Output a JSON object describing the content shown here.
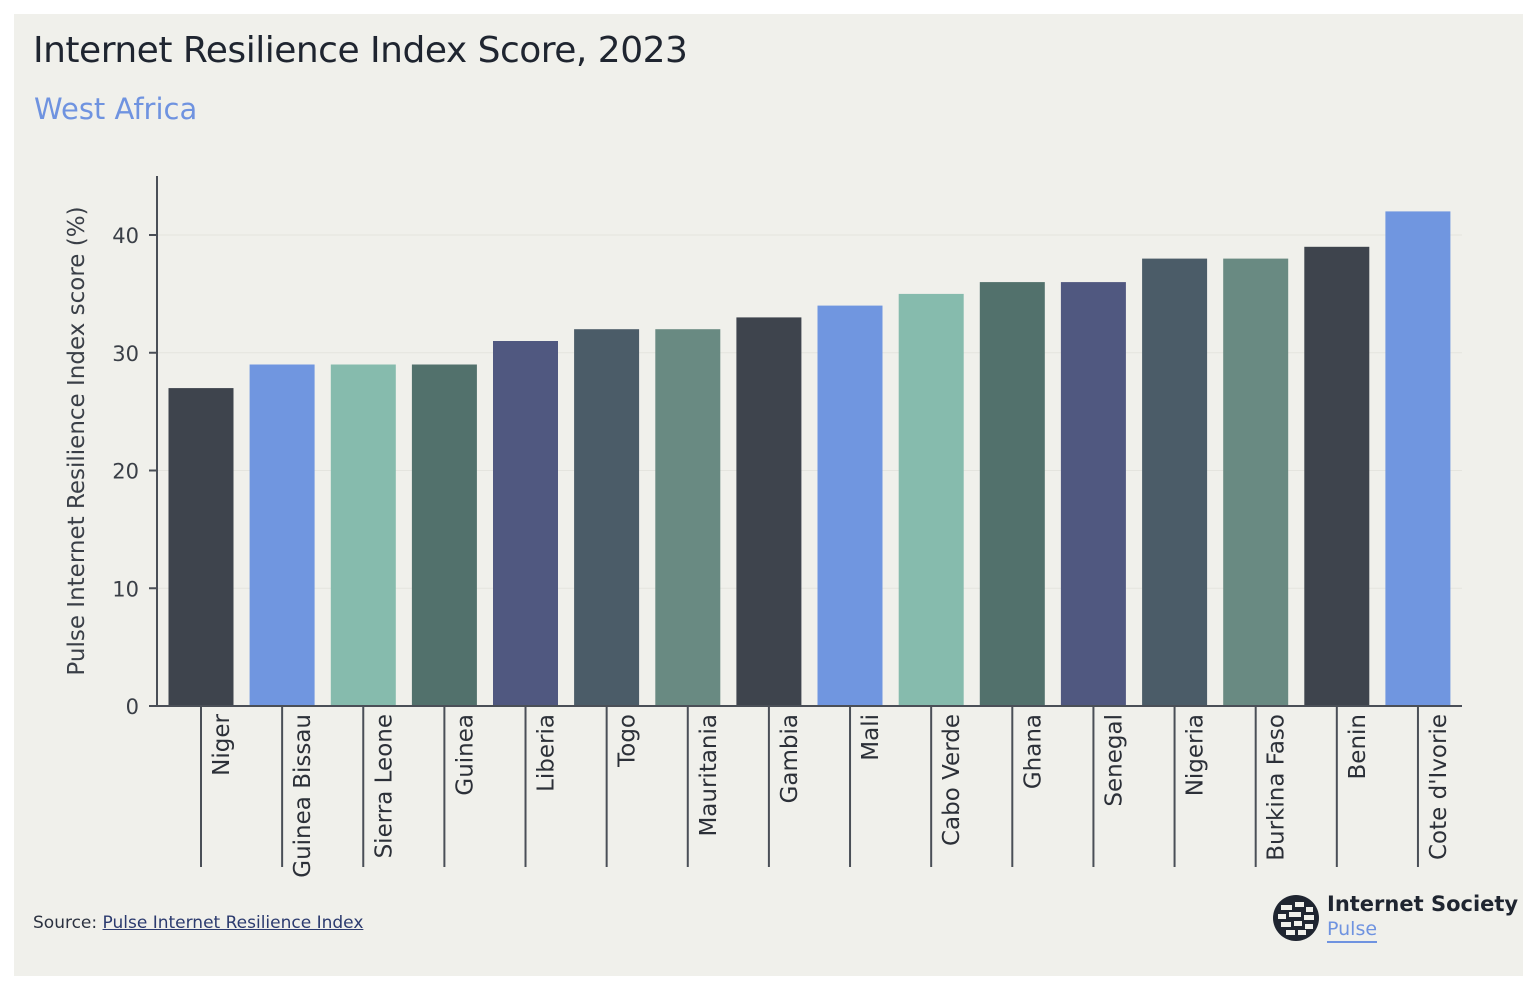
{
  "header": {
    "title": "Internet Resilience Index Score, 2023",
    "subtitle": "West Africa"
  },
  "footer": {
    "source_label": "Source:",
    "source_link": "Pulse Internet Resilience Index"
  },
  "logo": {
    "name": "Internet Society",
    "sub": "Pulse",
    "icon": "globe-logo-icon"
  },
  "chart_data": {
    "type": "bar",
    "title": "Internet Resilience Index Score, 2023",
    "subtitle": "West Africa",
    "xlabel": "",
    "ylabel": "Pulse Internet Resilience Index score (%)",
    "ylim": [
      0,
      45
    ],
    "yticks": [
      0,
      10,
      20,
      30,
      40
    ],
    "grid": true,
    "legend": "none",
    "categories": [
      "Niger",
      "Guinea Bissau",
      "Sierra Leone",
      "Guinea",
      "Liberia",
      "Togo",
      "Mauritania",
      "Gambia",
      "Mali",
      "Cabo Verde",
      "Ghana",
      "Senegal",
      "Nigeria",
      "Burkina Faso",
      "Benin",
      "Cote d'Ivorie"
    ],
    "values": [
      27,
      29,
      29,
      29,
      31,
      32,
      32,
      33,
      34,
      35,
      36,
      36,
      38,
      38,
      39,
      42
    ],
    "colors": [
      "#3e444d",
      "#7096e0",
      "#86bbad",
      "#52716c",
      "#505880",
      "#4b5c68",
      "#698a82",
      "#3e444d",
      "#7096e0",
      "#86bbad",
      "#52716c",
      "#505880",
      "#4b5c68",
      "#698a82",
      "#3e444d",
      "#7096e0"
    ]
  }
}
